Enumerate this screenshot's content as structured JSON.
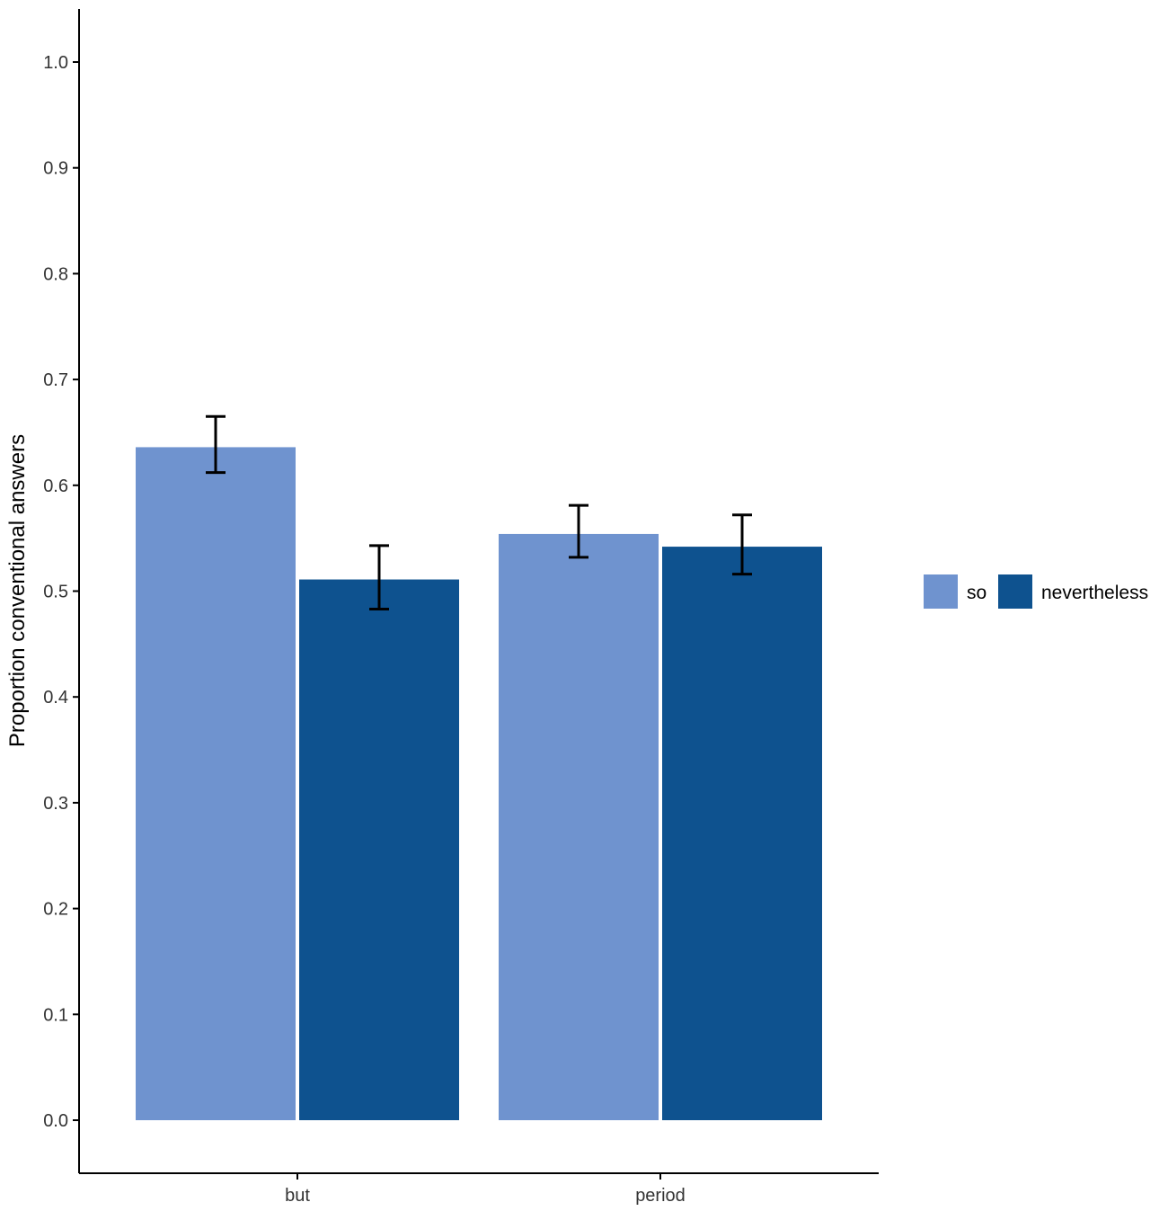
{
  "chart_data": {
    "type": "bar",
    "title": "",
    "xlabel": "",
    "ylabel": "Proportion conventional answers",
    "categories": [
      "but",
      "period"
    ],
    "series": [
      {
        "name": "so",
        "color": "#6f93cf",
        "values": [
          0.636,
          0.554
        ],
        "error_low": [
          0.612,
          0.532
        ],
        "error_high": [
          0.665,
          0.581
        ]
      },
      {
        "name": "nevertheless",
        "color": "#0e528f",
        "values": [
          0.511,
          0.542
        ],
        "error_low": [
          0.483,
          0.516
        ],
        "error_high": [
          0.543,
          0.572
        ]
      }
    ],
    "ylim": [
      0,
      1.0
    ],
    "yticks": [
      "0.0",
      "0.1",
      "0.2",
      "0.3",
      "0.4",
      "0.5",
      "0.6",
      "0.7",
      "0.8",
      "0.9",
      "1.0"
    ],
    "grid": false,
    "legend_position": "right"
  }
}
